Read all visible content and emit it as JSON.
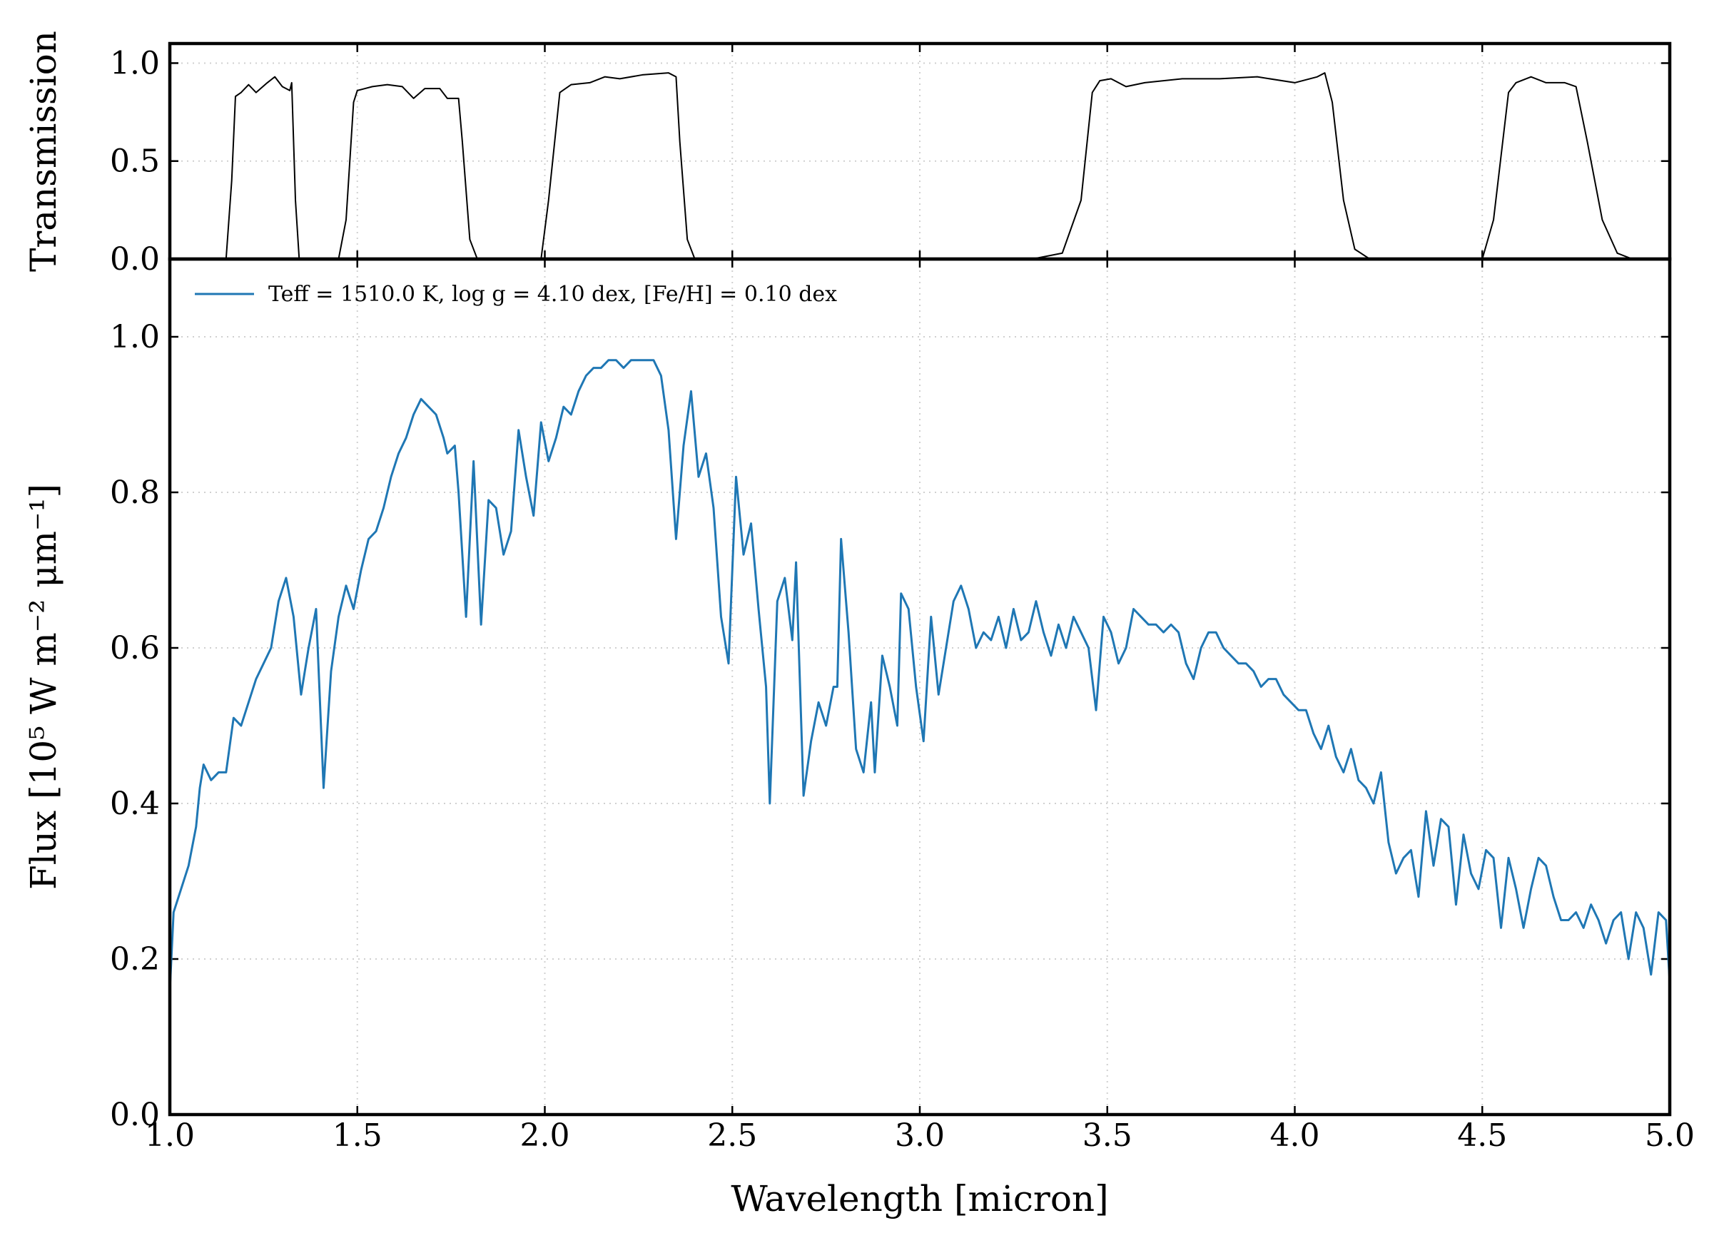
{
  "chart_data": [
    {
      "type": "line",
      "ylabel": "Transmission",
      "color": "#000000",
      "grid": true,
      "xlim": [
        1,
        5
      ],
      "xticks": [
        1,
        1.5,
        2,
        2.5,
        3,
        3.5,
        4,
        4.5,
        5
      ],
      "ylim": [
        0,
        1.1
      ],
      "yticks": [
        {
          "value": 0,
          "label": "0.0"
        },
        {
          "value": 0.5,
          "label": "0.5"
        },
        {
          "value": 1,
          "label": "1.0"
        }
      ],
      "x": [
        1.0,
        1.15,
        1.165,
        1.175,
        1.19,
        1.21,
        1.23,
        1.26,
        1.28,
        1.3,
        1.32,
        1.325,
        1.335,
        1.345,
        1.45,
        1.47,
        1.49,
        1.5,
        1.54,
        1.58,
        1.62,
        1.65,
        1.68,
        1.72,
        1.74,
        1.77,
        1.78,
        1.8,
        1.82,
        1.99,
        2.01,
        2.04,
        2.07,
        2.12,
        2.16,
        2.2,
        2.26,
        2.33,
        2.35,
        2.36,
        2.38,
        2.4,
        3.3,
        3.38,
        3.43,
        3.46,
        3.48,
        3.51,
        3.55,
        3.6,
        3.7,
        3.8,
        3.9,
        4.0,
        4.06,
        4.08,
        4.1,
        4.13,
        4.16,
        4.2,
        4.5,
        4.53,
        4.57,
        4.59,
        4.63,
        4.67,
        4.72,
        4.75,
        4.78,
        4.82,
        4.86,
        4.9,
        5.0
      ],
      "values": [
        0,
        0,
        0.4,
        0.83,
        0.85,
        0.89,
        0.85,
        0.9,
        0.93,
        0.88,
        0.86,
        0.9,
        0.3,
        0,
        0,
        0.2,
        0.8,
        0.86,
        0.88,
        0.89,
        0.88,
        0.82,
        0.87,
        0.87,
        0.82,
        0.82,
        0.6,
        0.1,
        0,
        0,
        0.3,
        0.85,
        0.89,
        0.9,
        0.93,
        0.92,
        0.94,
        0.95,
        0.93,
        0.6,
        0.1,
        0,
        0,
        0.03,
        0.3,
        0.85,
        0.91,
        0.92,
        0.88,
        0.9,
        0.92,
        0.92,
        0.93,
        0.9,
        0.93,
        0.95,
        0.8,
        0.3,
        0.05,
        0,
        0,
        0.2,
        0.85,
        0.9,
        0.93,
        0.9,
        0.9,
        0.88,
        0.6,
        0.2,
        0.03,
        0,
        0
      ]
    },
    {
      "type": "line",
      "xlabel": "Wavelength [micron]",
      "ylabel": "Flux [10⁵ W m⁻² μm⁻¹]",
      "grid": true,
      "legend": "upper left",
      "xlim": [
        1,
        5
      ],
      "xticks": [
        {
          "value": 1,
          "label": "1.0"
        },
        {
          "value": 1.5,
          "label": "1.5"
        },
        {
          "value": 2,
          "label": "2.0"
        },
        {
          "value": 2.5,
          "label": "2.5"
        },
        {
          "value": 3,
          "label": "3.0"
        },
        {
          "value": 3.5,
          "label": "3.5"
        },
        {
          "value": 4,
          "label": "4.0"
        },
        {
          "value": 4.5,
          "label": "4.5"
        },
        {
          "value": 5,
          "label": "5.0"
        }
      ],
      "ylim": [
        0,
        1.1
      ],
      "yticks": [
        {
          "value": 0,
          "label": "0.0"
        },
        {
          "value": 0.2,
          "label": "0.2"
        },
        {
          "value": 0.4,
          "label": "0.4"
        },
        {
          "value": 0.6,
          "label": "0.6"
        },
        {
          "value": 0.8,
          "label": "0.8"
        },
        {
          "value": 1,
          "label": "1.0"
        }
      ],
      "x": [
        1.0,
        1.01,
        1.03,
        1.05,
        1.07,
        1.08,
        1.09,
        1.11,
        1.13,
        1.15,
        1.17,
        1.19,
        1.21,
        1.23,
        1.25,
        1.27,
        1.29,
        1.31,
        1.33,
        1.35,
        1.37,
        1.39,
        1.41,
        1.43,
        1.45,
        1.47,
        1.49,
        1.51,
        1.53,
        1.55,
        1.57,
        1.59,
        1.61,
        1.63,
        1.65,
        1.67,
        1.69,
        1.71,
        1.73,
        1.74,
        1.76,
        1.77,
        1.79,
        1.81,
        1.83,
        1.85,
        1.87,
        1.89,
        1.91,
        1.93,
        1.95,
        1.97,
        1.99,
        2.01,
        2.03,
        2.05,
        2.07,
        2.09,
        2.11,
        2.13,
        2.15,
        2.17,
        2.19,
        2.21,
        2.23,
        2.25,
        2.27,
        2.29,
        2.31,
        2.33,
        2.35,
        2.37,
        2.39,
        2.41,
        2.43,
        2.45,
        2.47,
        2.49,
        2.51,
        2.53,
        2.55,
        2.57,
        2.59,
        2.6,
        2.62,
        2.64,
        2.66,
        2.67,
        2.69,
        2.71,
        2.73,
        2.75,
        2.77,
        2.78,
        2.79,
        2.81,
        2.83,
        2.85,
        2.87,
        2.88,
        2.9,
        2.92,
        2.94,
        2.95,
        2.97,
        2.99,
        3.01,
        3.03,
        3.05,
        3.07,
        3.09,
        3.11,
        3.13,
        3.15,
        3.17,
        3.19,
        3.21,
        3.23,
        3.25,
        3.27,
        3.29,
        3.31,
        3.33,
        3.35,
        3.37,
        3.39,
        3.41,
        3.43,
        3.45,
        3.47,
        3.49,
        3.51,
        3.53,
        3.55,
        3.57,
        3.59,
        3.61,
        3.63,
        3.65,
        3.67,
        3.69,
        3.71,
        3.73,
        3.75,
        3.77,
        3.79,
        3.81,
        3.83,
        3.85,
        3.87,
        3.89,
        3.91,
        3.93,
        3.95,
        3.97,
        3.99,
        4.01,
        4.03,
        4.05,
        4.07,
        4.09,
        4.11,
        4.13,
        4.15,
        4.17,
        4.19,
        4.21,
        4.23,
        4.25,
        4.27,
        4.29,
        4.31,
        4.33,
        4.35,
        4.37,
        4.39,
        4.41,
        4.43,
        4.45,
        4.47,
        4.49,
        4.51,
        4.53,
        4.55,
        4.57,
        4.59,
        4.61,
        4.63,
        4.65,
        4.67,
        4.69,
        4.71,
        4.73,
        4.75,
        4.77,
        4.79,
        4.81,
        4.83,
        4.85,
        4.87,
        4.89,
        4.91,
        4.93,
        4.95,
        4.97,
        4.99,
        5.0
      ],
      "series": [
        {
          "name": "Teff = 1510.0 K, log g = 4.10 dex, [Fe/H] = 0.10 dex",
          "color": "#1f77b4",
          "values": [
            0.16,
            0.26,
            0.29,
            0.32,
            0.37,
            0.42,
            0.45,
            0.43,
            0.44,
            0.44,
            0.51,
            0.5,
            0.53,
            0.56,
            0.58,
            0.6,
            0.66,
            0.69,
            0.64,
            0.54,
            0.6,
            0.65,
            0.42,
            0.57,
            0.64,
            0.68,
            0.65,
            0.7,
            0.74,
            0.75,
            0.78,
            0.82,
            0.85,
            0.87,
            0.9,
            0.92,
            0.91,
            0.9,
            0.87,
            0.85,
            0.86,
            0.8,
            0.64,
            0.84,
            0.63,
            0.79,
            0.78,
            0.72,
            0.75,
            0.88,
            0.82,
            0.77,
            0.89,
            0.84,
            0.87,
            0.91,
            0.9,
            0.93,
            0.95,
            0.96,
            0.96,
            0.97,
            0.97,
            0.96,
            0.97,
            0.97,
            0.97,
            0.97,
            0.95,
            0.88,
            0.74,
            0.86,
            0.93,
            0.82,
            0.85,
            0.78,
            0.64,
            0.58,
            0.82,
            0.72,
            0.76,
            0.65,
            0.55,
            0.4,
            0.66,
            0.69,
            0.61,
            0.71,
            0.41,
            0.48,
            0.53,
            0.5,
            0.55,
            0.55,
            0.74,
            0.62,
            0.47,
            0.44,
            0.53,
            0.44,
            0.59,
            0.55,
            0.5,
            0.67,
            0.65,
            0.55,
            0.48,
            0.64,
            0.54,
            0.6,
            0.66,
            0.68,
            0.65,
            0.6,
            0.62,
            0.61,
            0.64,
            0.6,
            0.65,
            0.61,
            0.62,
            0.66,
            0.62,
            0.59,
            0.63,
            0.6,
            0.64,
            0.62,
            0.6,
            0.52,
            0.64,
            0.62,
            0.58,
            0.6,
            0.65,
            0.64,
            0.63,
            0.63,
            0.62,
            0.63,
            0.62,
            0.58,
            0.56,
            0.6,
            0.62,
            0.62,
            0.6,
            0.59,
            0.58,
            0.58,
            0.57,
            0.55,
            0.56,
            0.56,
            0.54,
            0.53,
            0.52,
            0.52,
            0.49,
            0.47,
            0.5,
            0.46,
            0.44,
            0.47,
            0.43,
            0.42,
            0.4,
            0.44,
            0.35,
            0.31,
            0.33,
            0.34,
            0.28,
            0.39,
            0.32,
            0.38,
            0.37,
            0.27,
            0.36,
            0.31,
            0.29,
            0.34,
            0.33,
            0.24,
            0.33,
            0.29,
            0.24,
            0.29,
            0.33,
            0.32,
            0.28,
            0.25,
            0.25,
            0.26,
            0.24,
            0.27,
            0.25,
            0.22,
            0.25,
            0.26,
            0.2,
            0.26,
            0.24,
            0.18,
            0.26,
            0.25,
            0.17
          ]
        }
      ]
    }
  ]
}
